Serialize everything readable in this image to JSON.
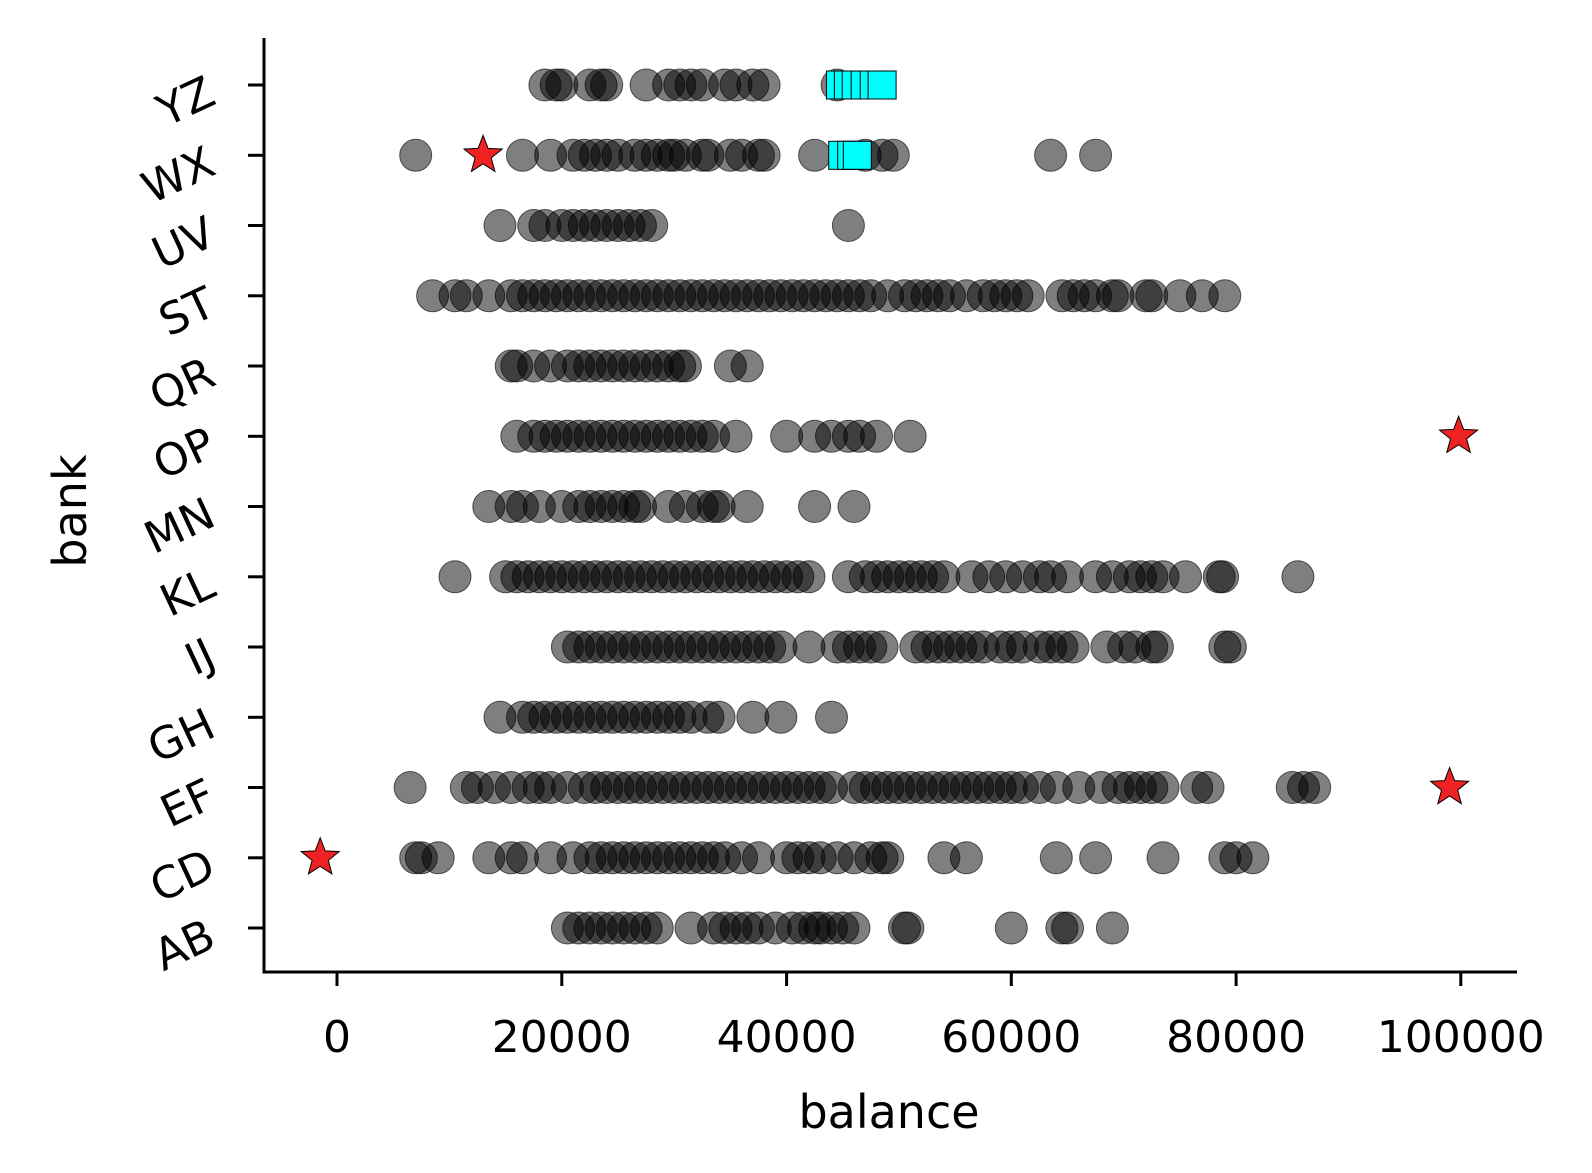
{
  "chart_data": {
    "type": "scatter",
    "title": "",
    "xlabel": "balance",
    "ylabel": "bank",
    "xlim": [
      -6500,
      105000
    ],
    "xticks": [
      0,
      20000,
      40000,
      60000,
      80000,
      100000
    ],
    "xtick_labels": [
      "0",
      "20000",
      "40000",
      "60000",
      "80000",
      "100000"
    ],
    "categories": [
      "AB",
      "CD",
      "EF",
      "GH",
      "IJ",
      "KL",
      "MN",
      "OP",
      "QR",
      "ST",
      "UV",
      "WX",
      "YZ"
    ],
    "grid": false,
    "legend": "none",
    "colors": {
      "points": "#000000",
      "outliers": "#ee2222",
      "boxes": "#00ffff"
    },
    "series": [
      {
        "marker": "circle",
        "opacity": 0.5,
        "rows": {
          "AB": [
            20500,
            21500,
            22500,
            23500,
            24500,
            25500,
            26500,
            27500,
            28500,
            31500,
            33500,
            34500,
            35500,
            36500,
            37500,
            39000,
            40500,
            41500,
            42500,
            43000,
            44000,
            45000,
            46000,
            50500,
            50800,
            60000,
            64500,
            65000,
            69000
          ],
          "CD": [
            7000,
            7500,
            9000,
            13500,
            15500,
            16500,
            19000,
            21000,
            22500,
            23500,
            24500,
            25500,
            26500,
            27500,
            28500,
            29500,
            30500,
            31500,
            32500,
            33500,
            34500,
            36000,
            37500,
            40000,
            41000,
            42000,
            43000,
            44500,
            46000,
            47500,
            48500,
            49000,
            54000,
            56000,
            64000,
            67500,
            73500,
            79000,
            80000,
            81500
          ],
          "EF": [
            6500,
            11500,
            12500,
            14000,
            15500,
            17000,
            18000,
            19000,
            20500,
            22000,
            23000,
            24000,
            25000,
            26000,
            27000,
            28000,
            29000,
            30000,
            31000,
            32000,
            33000,
            34000,
            35000,
            36000,
            37000,
            38000,
            39000,
            40000,
            41000,
            42000,
            43000,
            44000,
            46000,
            47000,
            48000,
            49000,
            50000,
            51000,
            52000,
            53000,
            54000,
            55000,
            56000,
            57000,
            58000,
            59000,
            60000,
            61000,
            62500,
            64000,
            66000,
            68000,
            69500,
            70500,
            71500,
            72500,
            73500,
            76500,
            77500,
            85000,
            86000,
            87000
          ],
          "GH": [
            14500,
            16500,
            17500,
            18500,
            19500,
            20500,
            21500,
            22500,
            23500,
            24500,
            25500,
            26500,
            27500,
            28500,
            29500,
            30500,
            31500,
            33000,
            34000,
            37000,
            39500,
            44000
          ],
          "IJ": [
            20500,
            21500,
            22500,
            23500,
            24500,
            25500,
            26500,
            27500,
            28500,
            29500,
            30500,
            31500,
            32500,
            33500,
            34500,
            35500,
            36500,
            37500,
            38500,
            39500,
            42000,
            44500,
            45500,
            46500,
            47500,
            48500,
            51500,
            52500,
            53500,
            54500,
            55500,
            56500,
            57500,
            59000,
            60000,
            61000,
            62500,
            63500,
            64500,
            65500,
            68500,
            70000,
            71000,
            72500,
            73000,
            79000,
            79500
          ],
          "KL": [
            10500,
            15000,
            16000,
            17000,
            18000,
            19000,
            20000,
            21000,
            22000,
            23000,
            24000,
            25000,
            26000,
            27000,
            28000,
            29000,
            30000,
            31000,
            32000,
            33000,
            34000,
            35000,
            36000,
            37000,
            38000,
            39000,
            40000,
            41000,
            42000,
            45500,
            47000,
            48000,
            49000,
            50000,
            51000,
            52000,
            53000,
            54000,
            56500,
            58000,
            59500,
            61000,
            62500,
            63500,
            65000,
            67500,
            69000,
            70500,
            71500,
            72500,
            73500,
            75500,
            78500,
            78800,
            85500
          ],
          "MN": [
            13500,
            15500,
            16500,
            18000,
            20000,
            21500,
            22500,
            23500,
            24500,
            25500,
            26500,
            27000,
            29500,
            31000,
            32500,
            33500,
            34000,
            36500,
            42500,
            46000
          ],
          "OP": [
            16000,
            17500,
            18500,
            19500,
            20500,
            21500,
            22500,
            23500,
            24500,
            25500,
            26500,
            27500,
            28500,
            29500,
            30500,
            31500,
            32500,
            33500,
            35500,
            40000,
            42500,
            44000,
            45500,
            46500,
            48000,
            51000
          ],
          "QR": [
            15500,
            16000,
            17500,
            19000,
            20500,
            21500,
            22500,
            23500,
            24500,
            25500,
            26500,
            27500,
            28500,
            29500,
            30500,
            31000,
            35000,
            36500
          ],
          "ST": [
            8500,
            10500,
            11500,
            13500,
            15500,
            16500,
            17500,
            18500,
            19500,
            20500,
            21500,
            22500,
            23500,
            24500,
            25500,
            26500,
            27500,
            28500,
            29500,
            30500,
            31500,
            32500,
            33500,
            34500,
            35500,
            36500,
            37500,
            38500,
            39500,
            40500,
            41500,
            42500,
            43500,
            44500,
            45500,
            46500,
            47500,
            49000,
            50500,
            51500,
            52500,
            53500,
            54500,
            56000,
            57500,
            58500,
            59500,
            60500,
            61500,
            64500,
            65500,
            66500,
            67500,
            69000,
            69500,
            72000,
            72500,
            75000,
            77000,
            79000
          ],
          "UV": [
            14500,
            17500,
            18500,
            20000,
            21000,
            22000,
            23000,
            24000,
            25000,
            26000,
            27000,
            28000,
            45500
          ],
          "WX": [
            7000,
            16500,
            19000,
            21000,
            22000,
            23000,
            24000,
            25000,
            26500,
            27500,
            28500,
            29500,
            30000,
            31000,
            32500,
            33000,
            35000,
            36000,
            37500,
            38000,
            42500,
            47000,
            48500,
            49500,
            63500,
            67500
          ],
          "YZ": [
            18500,
            19500,
            20000,
            22500,
            23500,
            24000,
            27500,
            29500,
            30500,
            31500,
            32500,
            34500,
            35500,
            37000,
            38000,
            44500
          ]
        }
      },
      {
        "marker": "star",
        "points": [
          {
            "category": "CD",
            "x": -1500
          },
          {
            "category": "EF",
            "x": 99000
          },
          {
            "category": "OP",
            "x": 99800
          },
          {
            "category": "WX",
            "x": 13000
          }
        ]
      },
      {
        "marker": "square",
        "points": [
          {
            "category": "YZ",
            "x": 44800
          },
          {
            "category": "YZ",
            "x": 45500
          },
          {
            "category": "YZ",
            "x": 46200
          },
          {
            "category": "YZ",
            "x": 47000
          },
          {
            "category": "YZ",
            "x": 47800
          },
          {
            "category": "YZ",
            "x": 48500
          },
          {
            "category": "WX",
            "x": 45000
          },
          {
            "category": "WX",
            "x": 45800
          },
          {
            "category": "WX",
            "x": 46300
          }
        ]
      }
    ]
  }
}
